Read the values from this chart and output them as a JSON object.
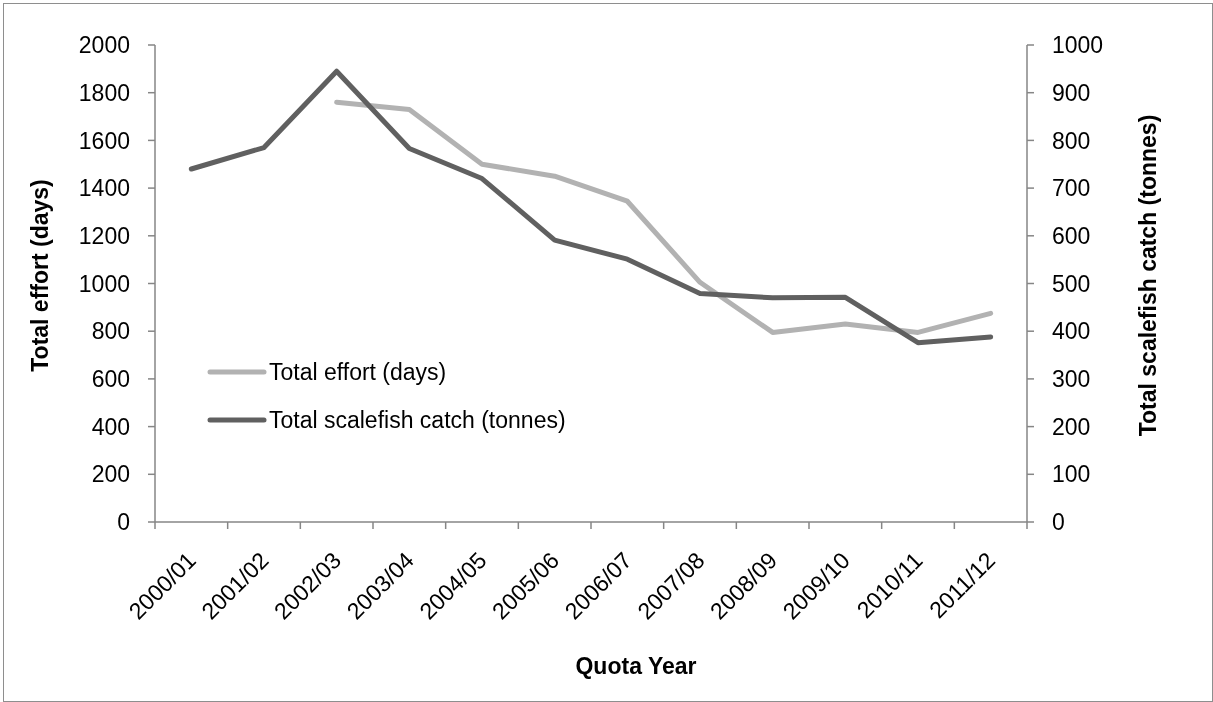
{
  "chart_data": {
    "type": "line",
    "xlabel": "Quota Year",
    "ylabel": "Total effort (days)",
    "y2label": "Total scalefish catch (tonnes)",
    "categories": [
      "2000/01",
      "2001/02",
      "2002/03",
      "2003/04",
      "2004/05",
      "2005/06",
      "2006/07",
      "2007/08",
      "2008/09",
      "2009/10",
      "2010/11",
      "2011/12"
    ],
    "series": [
      {
        "name": "Total effort (days)",
        "color": "#b2b2b2",
        "values": [
          null,
          null,
          1760,
          1730,
          1500,
          1450,
          1345,
          1005,
          795,
          830,
          795,
          875
        ]
      },
      {
        "name": "Total scalefish catch (tonnes)",
        "color": "#606060",
        "axis": "y2",
        "values": [
          740,
          785,
          945,
          783,
          720,
          591,
          551,
          479,
          470,
          471,
          376,
          388
        ]
      }
    ],
    "ylim": [
      0,
      2000
    ],
    "yticks": [
      0,
      200,
      400,
      600,
      800,
      1000,
      1200,
      1400,
      1600,
      1800,
      2000
    ],
    "y2lim": [
      0,
      1000
    ],
    "y2ticks": [
      0,
      100,
      200,
      300,
      400,
      500,
      600,
      700,
      800,
      900,
      1000
    ],
    "grid": false,
    "legend": "left",
    "marker": "none",
    "line_style": "solid"
  }
}
